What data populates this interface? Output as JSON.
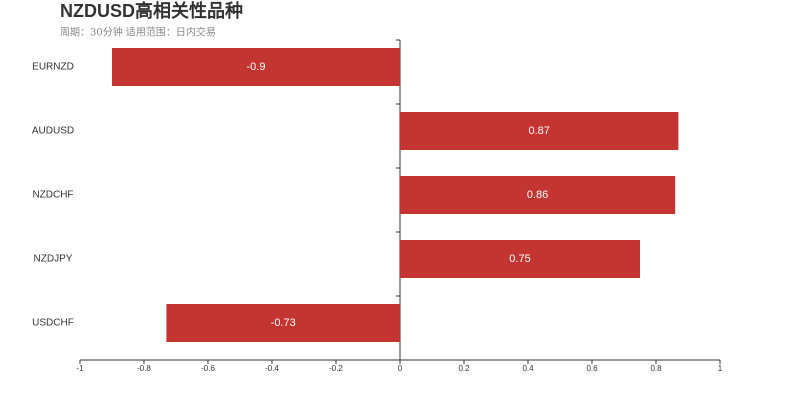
{
  "chart_data": {
    "type": "bar",
    "orientation": "horizontal",
    "title": "NZDUSD高相关性品种",
    "subtitle": "周期：30分钟 适用范围：日内交易",
    "categories": [
      "EURNZD",
      "AUDUSD",
      "NZDCHF",
      "NZDJPY",
      "USDCHF"
    ],
    "values": [
      -0.9,
      0.87,
      0.86,
      0.75,
      -0.73
    ],
    "color": "#c23531",
    "xlim": [
      -1,
      1
    ],
    "xticks": [
      -1,
      -0.8,
      -0.6,
      -0.4,
      -0.2,
      0,
      0.2,
      0.4,
      0.6,
      0.8,
      1
    ],
    "grid": false
  }
}
